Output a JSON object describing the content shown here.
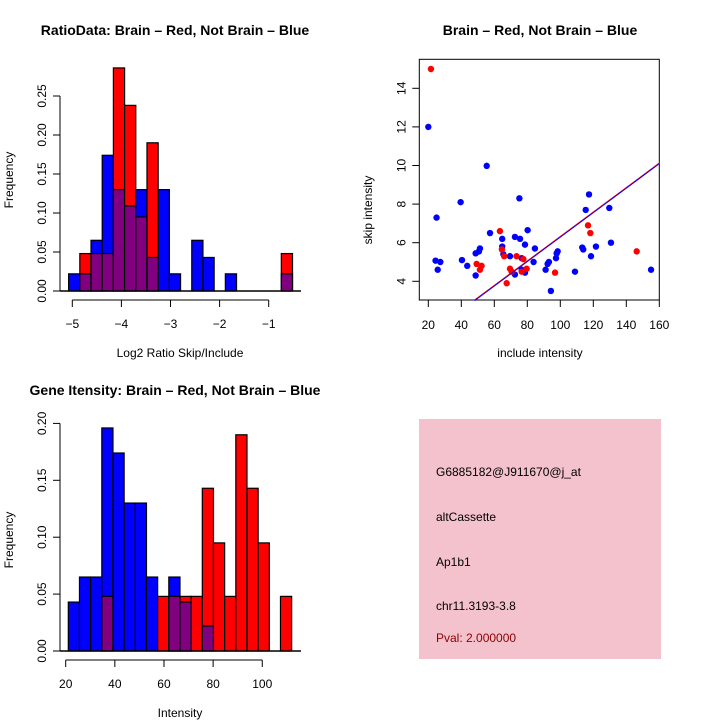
{
  "colors": {
    "brain": "#ff0000",
    "not_brain": "#0000ff",
    "overlap": "#800080",
    "panel": "#f4c2cd",
    "pval": "#8b0000"
  },
  "chart_data": [
    {
      "type": "bar",
      "subtype": "histogram-overlay",
      "title": "RatioData: Brain – Red, Not Brain – Blue",
      "xlabel": "Log2 Ratio Skip/Include",
      "ylabel": "Frequency",
      "xlim": [
        -5.08,
        -0.52
      ],
      "ylim": [
        0,
        0.29
      ],
      "bin_start": -5.075,
      "bin_width": 0.228,
      "xticks": [
        -5,
        -4,
        -3,
        -2,
        -1
      ],
      "xtick_labels": [
        "−5",
        "−4",
        "−3",
        "−2",
        "−1"
      ],
      "yticks": [
        0,
        0.05,
        0.1,
        0.15,
        0.2,
        0.25
      ],
      "ytick_labels": [
        "0.00",
        "0.05",
        "0.10",
        "0.15",
        "0.20",
        "0.25"
      ],
      "series": [
        {
          "name": "Not Brain",
          "color": "blue",
          "values": [
            0.022,
            0.022,
            0.065,
            0.174,
            0.13,
            0.109,
            0.13,
            0.043,
            0.13,
            0.022,
            0,
            0.065,
            0.043,
            0,
            0.022,
            0,
            0,
            0,
            0,
            0.022
          ]
        },
        {
          "name": "Brain",
          "color": "red",
          "values": [
            0,
            0.048,
            0.048,
            0.048,
            0.286,
            0.238,
            0.095,
            0.19,
            0,
            0,
            0,
            0,
            0,
            0,
            0,
            0,
            0,
            0,
            0,
            0.048
          ]
        }
      ]
    },
    {
      "type": "scatter",
      "title": "Brain – Red, Not Brain – Blue",
      "xlabel": "include intensity",
      "ylabel": "skip intensity",
      "xlim": [
        14.5,
        160
      ],
      "ylim": [
        3.0,
        15.5
      ],
      "xticks": [
        20,
        40,
        60,
        80,
        100,
        120,
        140,
        160
      ],
      "xtick_labels": [
        "20",
        "40",
        "60",
        "80",
        "100",
        "120",
        "140",
        "160"
      ],
      "yticks": [
        4,
        6,
        8,
        10,
        12,
        14
      ],
      "ytick_labels": [
        "4",
        "6",
        "8",
        "10",
        "12",
        "14"
      ],
      "line": {
        "slope": 0.0634,
        "intercept": -0.04
      },
      "series": [
        {
          "name": "Not Brain",
          "color": "blue",
          "points": [
            [
              20,
              12.0
            ],
            [
              25,
              7.3
            ],
            [
              24.4,
              5.07
            ],
            [
              27.3,
              5.0
            ],
            [
              25.7,
              4.6
            ],
            [
              39.6,
              8.1
            ],
            [
              40.4,
              5.1
            ],
            [
              43.6,
              4.8
            ],
            [
              48.7,
              4.3
            ],
            [
              48.7,
              5.45
            ],
            [
              50.7,
              5.55
            ],
            [
              51.3,
              5.7
            ],
            [
              55.4,
              9.98
            ],
            [
              57.4,
              6.5
            ],
            [
              64.8,
              6.2
            ],
            [
              64.8,
              5.8
            ],
            [
              65.5,
              5.4
            ],
            [
              69.5,
              5.3
            ],
            [
              72.5,
              6.3
            ],
            [
              75.2,
              8.3
            ],
            [
              75.6,
              6.2
            ],
            [
              76.6,
              5.2
            ],
            [
              76.6,
              4.6
            ],
            [
              72.5,
              4.35
            ],
            [
              78.6,
              5.9
            ],
            [
              78.6,
              4.45
            ],
            [
              80.2,
              6.65
            ],
            [
              84.6,
              5.7
            ],
            [
              83.8,
              5.0
            ],
            [
              91.1,
              4.6
            ],
            [
              92.3,
              4.9
            ],
            [
              93.1,
              5.0
            ],
            [
              94.3,
              3.5
            ],
            [
              97.4,
              5.2
            ],
            [
              97.8,
              5.45
            ],
            [
              98.4,
              5.55
            ],
            [
              108.9,
              4.5
            ],
            [
              113.3,
              5.75
            ],
            [
              113.9,
              5.65
            ],
            [
              115.4,
              7.7
            ],
            [
              117.4,
              8.5
            ],
            [
              118.6,
              5.3
            ],
            [
              121.6,
              5.8
            ],
            [
              129.7,
              7.8
            ],
            [
              130.7,
              6.0
            ],
            [
              155,
              4.6
            ]
          ]
        },
        {
          "name": "Brain",
          "color": "red",
          "points": [
            [
              21.6,
              15.0
            ],
            [
              63.4,
              6.6
            ],
            [
              64.6,
              5.65
            ],
            [
              66,
              5.3
            ],
            [
              49.3,
              4.9
            ],
            [
              51.3,
              4.6
            ],
            [
              52.3,
              4.8
            ],
            [
              69.5,
              4.65
            ],
            [
              70.5,
              4.5
            ],
            [
              67.5,
              3.9
            ],
            [
              73.5,
              5.3
            ],
            [
              77.6,
              5.15
            ],
            [
              76.6,
              4.5
            ],
            [
              79.6,
              4.65
            ],
            [
              96.8,
              4.45
            ],
            [
              116.8,
              6.9
            ],
            [
              118.2,
              6.5
            ],
            [
              146.3,
              5.55
            ]
          ]
        }
      ]
    },
    {
      "type": "bar",
      "subtype": "histogram-overlay",
      "title": "Gene Itensity: Brain – Red, Not Brain – Blue",
      "xlabel": "Intensity",
      "ylabel": "Frequency",
      "xlim": [
        21,
        112
      ],
      "ylim": [
        0,
        0.2
      ],
      "bin_start": 21.06,
      "bin_width": 4.545,
      "xticks": [
        20,
        40,
        60,
        80,
        100
      ],
      "xtick_labels": [
        "20",
        "40",
        "60",
        "80",
        "100"
      ],
      "yticks": [
        0,
        0.05,
        0.1,
        0.15,
        0.2
      ],
      "ytick_labels": [
        "0.00",
        "0.05",
        "0.10",
        "0.15",
        "0.20"
      ],
      "series": [
        {
          "name": "Not Brain",
          "color": "blue",
          "values": [
            0.043,
            0.065,
            0.065,
            0.196,
            0.174,
            0.13,
            0.13,
            0.065,
            0,
            0.065,
            0.043,
            0,
            0.022,
            0,
            0,
            0,
            0,
            0,
            0,
            0
          ]
        },
        {
          "name": "Brain",
          "color": "red",
          "values": [
            0,
            0,
            0,
            0.048,
            0,
            0,
            0,
            0,
            0.048,
            0.048,
            0.048,
            0.048,
            0.143,
            0.095,
            0.048,
            0.19,
            0.143,
            0.095,
            0,
            0.048
          ]
        }
      ]
    }
  ],
  "info_panel": {
    "probe_id": "G6885182@J911670@j_at",
    "event_type": "altCassette",
    "gene": "Ap1b1",
    "location": "chr11.3193-3.8",
    "pval": "Pval: 2.000000"
  }
}
